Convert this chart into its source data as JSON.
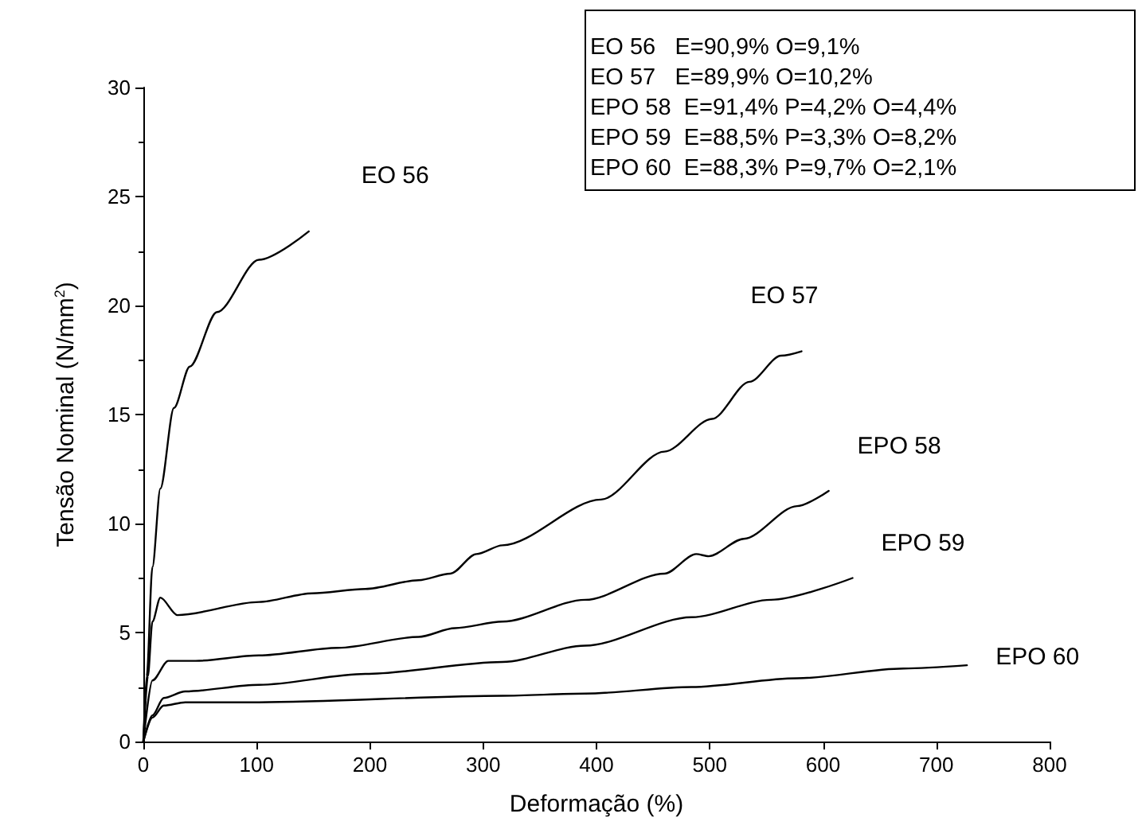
{
  "chart_data": {
    "type": "line",
    "xlabel": "Deformação (%)",
    "ylabel": "Tensão Nominal (N/mm$^{2}$)",
    "xlim": [
      0,
      800
    ],
    "xticks": [
      0,
      100,
      200,
      300,
      400,
      500,
      600,
      700,
      800
    ],
    "ylim": [
      0,
      30
    ],
    "yticks": [
      0,
      5,
      10,
      15,
      20,
      25,
      30
    ],
    "grid": false,
    "legend": false,
    "marker": "none",
    "line_style": "solid",
    "annotations": [
      "EO 56   E=90,9% O=9,1%",
      "EO 57   E=89,9% O=10,2%",
      "EPO 58  E=91,4% P=4,2% O=4,4%",
      "EPO 59  E=88,5% P=3,3% O=8,2%",
      "EPO 60  E=88,3% P=9,7% O=2,1%"
    ],
    "series": [
      {
        "name": "EO 56",
        "color": "#000000",
        "x": [
          0,
          3,
          8,
          15,
          27,
          41,
          65,
          102,
          146
        ],
        "values": [
          0,
          3,
          8.0,
          11.6,
          15.3,
          17.2,
          19.7,
          22.1,
          23.4
        ]
      },
      {
        "name": "EO 57",
        "color": "#000000",
        "x": [
          0,
          4,
          8,
          15,
          30,
          102,
          149,
          196,
          243,
          271,
          294,
          317,
          404,
          460,
          502,
          535,
          563,
          581
        ],
        "values": [
          0,
          3,
          5.5,
          6.6,
          5.8,
          6.4,
          6.8,
          7.0,
          7.4,
          7.7,
          8.6,
          9.0,
          11.1,
          13.3,
          14.8,
          16.5,
          17.7,
          17.9
        ]
      },
      {
        "name": "EPO 58",
        "color": "#000000",
        "x": [
          0,
          8,
          22,
          46,
          102,
          172,
          243,
          275,
          317,
          390,
          460,
          488,
          499,
          530,
          577,
          605
        ],
        "values": [
          0,
          2.8,
          3.7,
          3.7,
          3.95,
          4.3,
          4.8,
          5.2,
          5.5,
          6.5,
          7.7,
          8.6,
          8.5,
          9.3,
          10.8,
          11.5
        ]
      },
      {
        "name": "EPO 59",
        "color": "#000000",
        "x": [
          0,
          8,
          18,
          37,
          102,
          196,
          317,
          390,
          484,
          554,
          626
        ],
        "values": [
          0,
          1.2,
          2.0,
          2.3,
          2.6,
          3.1,
          3.65,
          4.4,
          5.7,
          6.5,
          7.5
        ]
      },
      {
        "name": "EPO 60",
        "color": "#000000",
        "x": [
          0,
          8,
          18,
          37,
          102,
          317,
          390,
          484,
          577,
          671,
          727
        ],
        "values": [
          0,
          1.1,
          1.65,
          1.8,
          1.8,
          2.1,
          2.2,
          2.5,
          2.9,
          3.35,
          3.5
        ]
      }
    ]
  }
}
